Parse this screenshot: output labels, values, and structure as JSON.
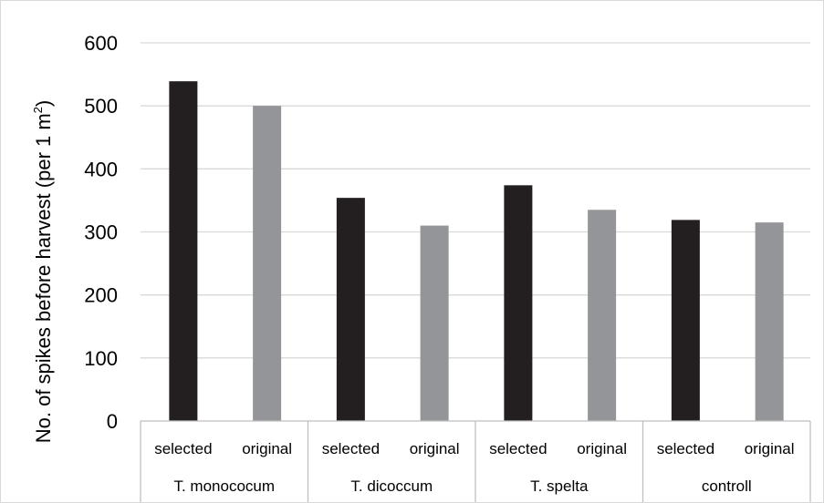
{
  "chart_data": {
    "type": "bar",
    "ylabel_main": "No. of spikes before harvest (per 1 m",
    "ylabel_sup": "2",
    "ylabel_end": ")",
    "ylim": [
      0,
      600
    ],
    "yticks": [
      "0",
      "100",
      "200",
      "300",
      "400",
      "500",
      "600"
    ],
    "grid": true,
    "groups": [
      "T. monococum",
      "T. dicoccum",
      "T. spelta",
      "controll"
    ],
    "categories": [
      "selected",
      "original",
      "selected",
      "original",
      "selected",
      "original",
      "selected",
      "original"
    ],
    "values": [
      539,
      500,
      354,
      310,
      374,
      335,
      319,
      315
    ],
    "colors": {
      "selected": "#231f20",
      "original": "#939598"
    }
  }
}
